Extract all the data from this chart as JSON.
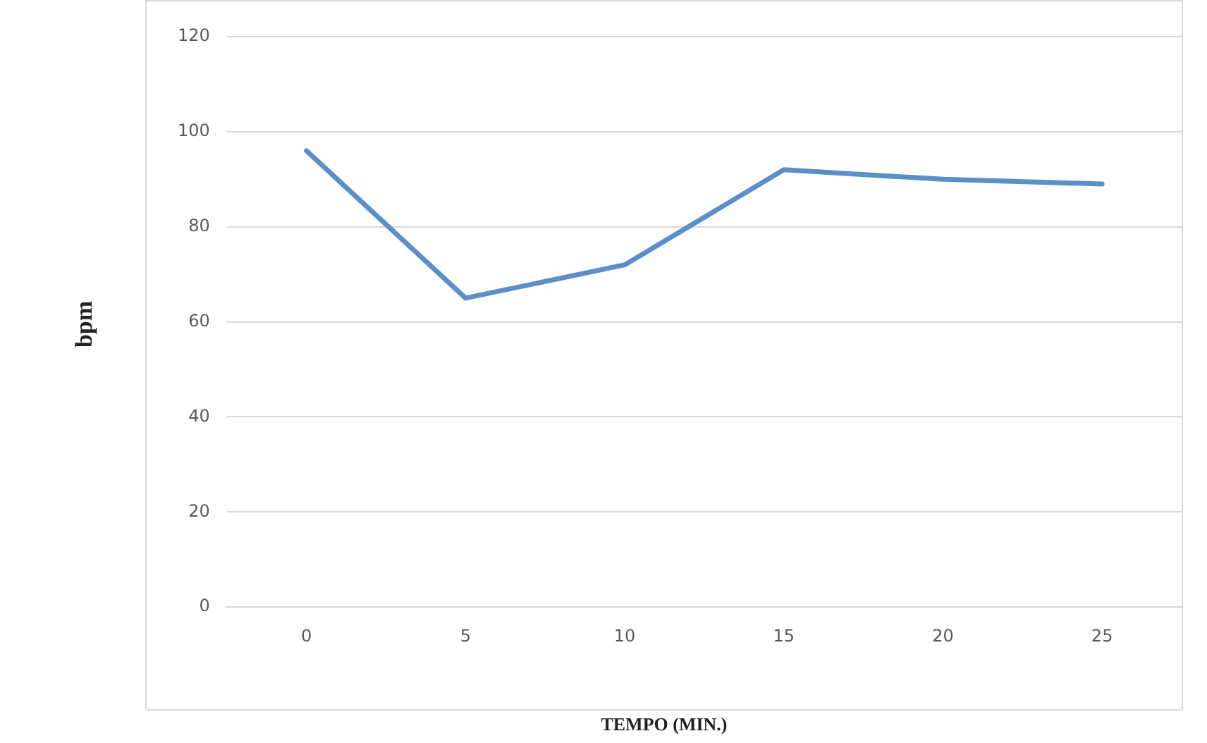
{
  "chart_data": {
    "type": "line",
    "xlabel": "TEMPO (MIN.)",
    "ylabel": "bpm",
    "categories": [
      "0",
      "5",
      "10",
      "15",
      "20",
      "25"
    ],
    "series": [
      {
        "color": "#5b8fc8",
        "values": [
          96,
          65,
          72,
          92,
          90,
          89
        ]
      }
    ],
    "ylim": [
      0,
      120
    ],
    "yticks": [
      0,
      20,
      40,
      60,
      80,
      100,
      120
    ],
    "grid": "y",
    "legend": false,
    "marker": "none",
    "line_style": "solid"
  }
}
